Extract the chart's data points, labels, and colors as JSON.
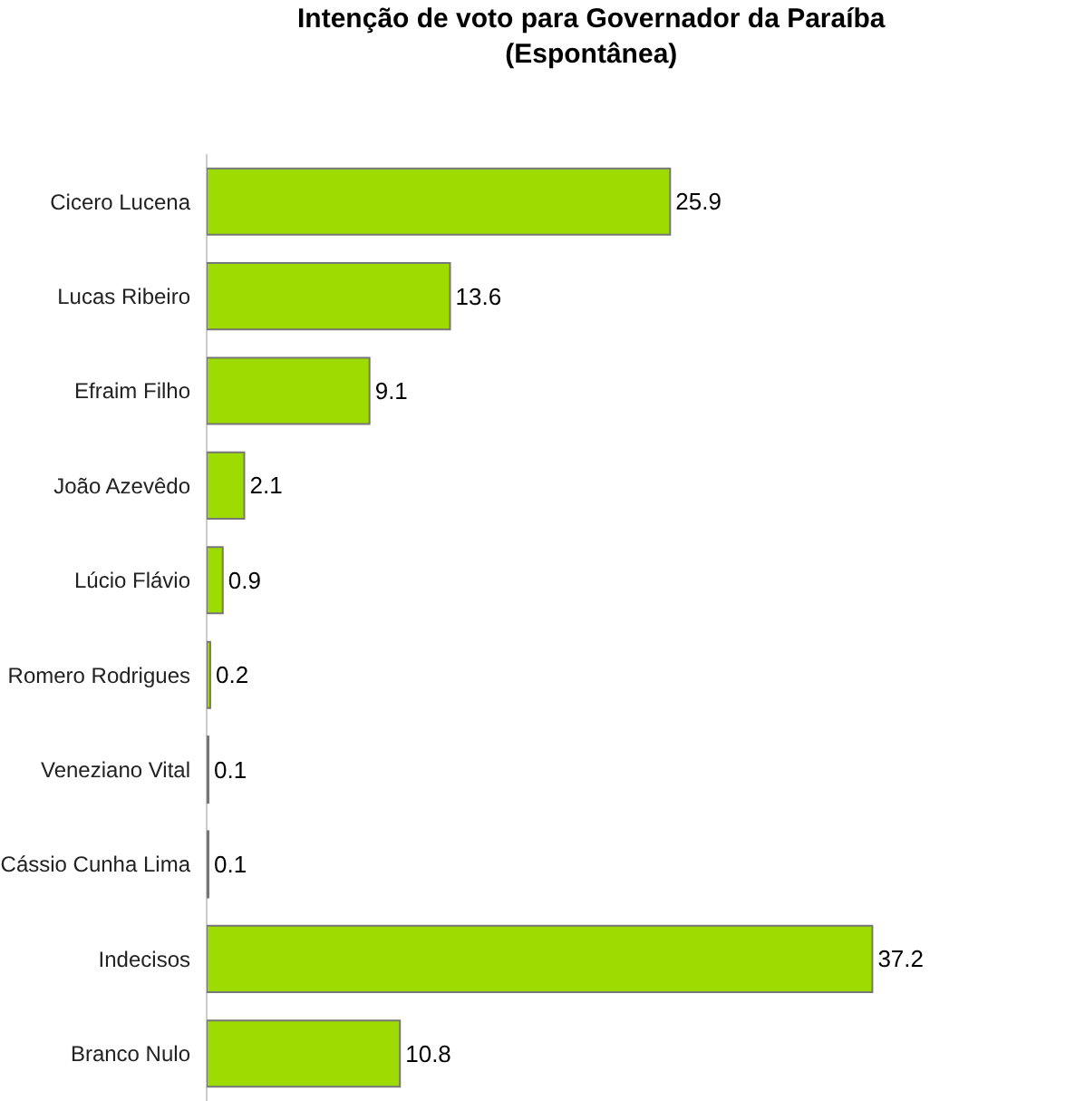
{
  "chart_data": {
    "type": "bar",
    "orientation": "horizontal",
    "title": "Intenção de voto para Governador da Paraíba\n(Espontânea)",
    "categories": [
      "Cicero Lucena",
      "Lucas Ribeiro",
      "Efraim Filho",
      "João Azevêdo",
      "Lúcio Flávio",
      "Romero Rodrigues",
      "Veneziano Vital",
      "Cássio Cunha Lima",
      "Indecisos",
      "Branco Nulo"
    ],
    "values": [
      25.9,
      13.6,
      9.1,
      2.1,
      0.9,
      0.2,
      0.1,
      0.1,
      37.2,
      10.8
    ],
    "color": "#9edb00",
    "data_labels": true,
    "grid": false,
    "legend": false
  }
}
